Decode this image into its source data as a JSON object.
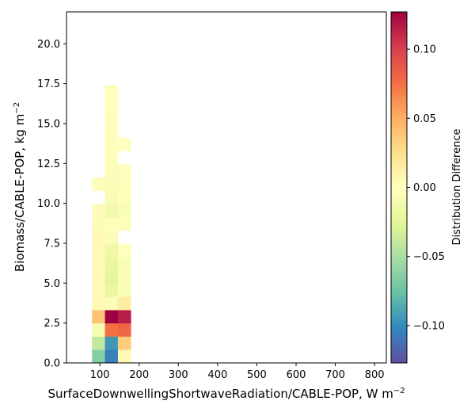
{
  "chart_data": {
    "type": "heatmap",
    "title": "",
    "xlabel": "SurfaceDownwellingShortwaveRadiation/CABLE-POP,  W m",
    "xlabel_sup": "−2",
    "ylabel": "Biomass/CABLE-POP,  kg m",
    "ylabel_sup": "−2",
    "xlim": [
      15,
      830
    ],
    "ylim": [
      0,
      22
    ],
    "x_ticks": [
      100,
      200,
      300,
      400,
      500,
      600,
      700,
      800
    ],
    "x_tick_labels": [
      "100",
      "200",
      "300",
      "400",
      "500",
      "600",
      "700",
      "800"
    ],
    "y_ticks": [
      0,
      2.5,
      5,
      7.5,
      10,
      12.5,
      15,
      17.5,
      20
    ],
    "y_tick_labels": [
      "0.0",
      "2.5",
      "5.0",
      "7.5",
      "10.0",
      "12.5",
      "15.0",
      "17.5",
      "20.0"
    ],
    "bin_width_x": 33,
    "bin_height_y": 0.83,
    "colorbar": {
      "label": "Distribution Difference",
      "colormap": "Spectral_r",
      "vmin": -0.127,
      "vmax": 0.127,
      "ticks": [
        -0.1,
        -0.05,
        0,
        0.05,
        0.1
      ],
      "tick_labels": [
        "−0.10",
        "−0.05",
        "0.00",
        "0.05",
        "0.10"
      ]
    },
    "cells": [
      {
        "x": 80,
        "y": 0,
        "value": -0.065
      },
      {
        "x": 113,
        "y": 0,
        "value": -0.105
      },
      {
        "x": 146,
        "y": 0,
        "value": 0.005
      },
      {
        "x": 80,
        "y": 0.83,
        "value": -0.04
      },
      {
        "x": 113,
        "y": 0.83,
        "value": -0.095
      },
      {
        "x": 146,
        "y": 0.83,
        "value": 0.035
      },
      {
        "x": 80,
        "y": 1.66,
        "value": -0.01
      },
      {
        "x": 113,
        "y": 1.66,
        "value": 0.075
      },
      {
        "x": 146,
        "y": 1.66,
        "value": 0.08
      },
      {
        "x": 80,
        "y": 2.49,
        "value": 0.04
      },
      {
        "x": 113,
        "y": 2.49,
        "value": 0.127
      },
      {
        "x": 146,
        "y": 2.49,
        "value": 0.115
      },
      {
        "x": 80,
        "y": 3.32,
        "value": 0.005
      },
      {
        "x": 113,
        "y": 3.32,
        "value": -0.005
      },
      {
        "x": 146,
        "y": 3.32,
        "value": 0.015
      },
      {
        "x": 80,
        "y": 4.15,
        "value": 0.005
      },
      {
        "x": 113,
        "y": 4.15,
        "value": -0.02
      },
      {
        "x": 146,
        "y": 4.15,
        "value": -0.005
      },
      {
        "x": 80,
        "y": 4.98,
        "value": 0.005
      },
      {
        "x": 113,
        "y": 4.98,
        "value": -0.025
      },
      {
        "x": 146,
        "y": 4.98,
        "value": -0.005
      },
      {
        "x": 80,
        "y": 5.81,
        "value": 0.005
      },
      {
        "x": 113,
        "y": 5.81,
        "value": -0.02
      },
      {
        "x": 146,
        "y": 5.81,
        "value": -0.005
      },
      {
        "x": 80,
        "y": 6.64,
        "value": 0.005
      },
      {
        "x": 113,
        "y": 6.64,
        "value": -0.015
      },
      {
        "x": 146,
        "y": 6.64,
        "value": 0.0
      },
      {
        "x": 80,
        "y": 7.47,
        "value": 0.005
      },
      {
        "x": 113,
        "y": 7.47,
        "value": -0.005
      },
      {
        "x": 80,
        "y": 8.3,
        "value": 0.003
      },
      {
        "x": 113,
        "y": 8.3,
        "value": -0.003
      },
      {
        "x": 146,
        "y": 8.3,
        "value": -0.003
      },
      {
        "x": 80,
        "y": 9.13,
        "value": 0.003
      },
      {
        "x": 113,
        "y": 9.13,
        "value": -0.012
      },
      {
        "x": 146,
        "y": 9.13,
        "value": -0.006
      },
      {
        "x": 113,
        "y": 9.96,
        "value": -0.008
      },
      {
        "x": 146,
        "y": 9.96,
        "value": -0.003
      },
      {
        "x": 80,
        "y": 10.79,
        "value": -0.002
      },
      {
        "x": 113,
        "y": 10.79,
        "value": -0.006
      },
      {
        "x": 146,
        "y": 10.79,
        "value": -0.002
      },
      {
        "x": 113,
        "y": 11.62,
        "value": -0.004
      },
      {
        "x": 146,
        "y": 11.62,
        "value": -0.002
      },
      {
        "x": 113,
        "y": 12.45,
        "value": -0.003
      },
      {
        "x": 113,
        "y": 13.28,
        "value": -0.002
      },
      {
        "x": 146,
        "y": 13.28,
        "value": -0.001
      },
      {
        "x": 113,
        "y": 14.11,
        "value": -0.002
      },
      {
        "x": 113,
        "y": 14.94,
        "value": -0.002
      },
      {
        "x": 113,
        "y": 15.77,
        "value": -0.001
      },
      {
        "x": 113,
        "y": 16.6,
        "value": -0.001
      }
    ]
  }
}
